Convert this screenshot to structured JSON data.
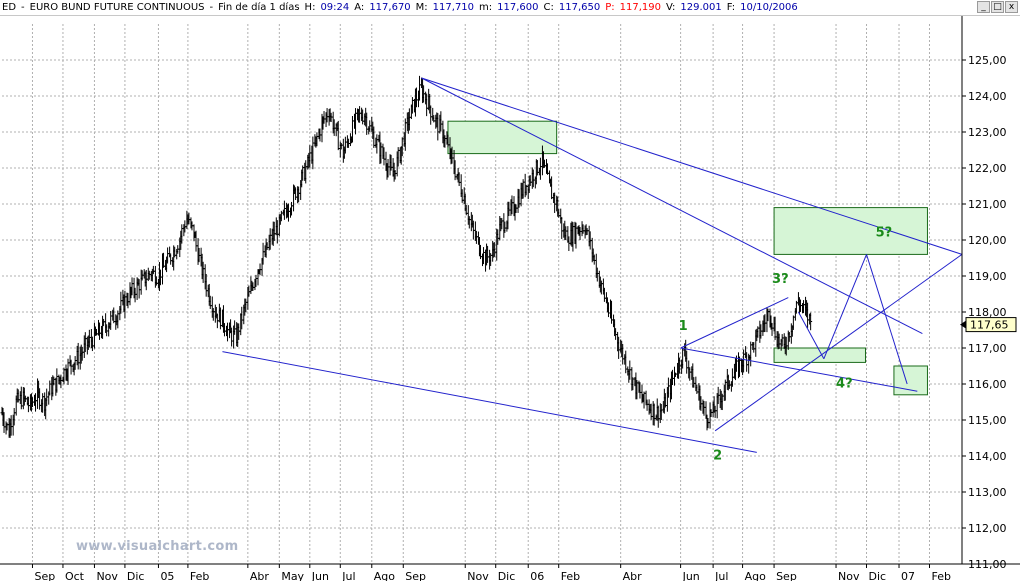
{
  "title_bar": {
    "symbol": "ED",
    "separator": "-",
    "name": "EURO BUND FUTURE CONTINUOUS",
    "dash": "-",
    "period": "Fin de día 1 días",
    "h_label": "H:",
    "h_value": "09:24",
    "a_label": "A:",
    "a_value": "117,670",
    "m_label": "M:",
    "m_value": "117,710",
    "mi_label": "m:",
    "mi_value": "117,600",
    "c_label": "C:",
    "c_value": "117,650",
    "p_label": "P:",
    "p_value": "117,190",
    "v_label": "V:",
    "v_value": "129.001",
    "f_label": "F:",
    "f_value": "10/10/2006",
    "buttons": {
      "minimize": "_",
      "restore": "□",
      "close": "x"
    }
  },
  "watermark": "www.visualchart.com",
  "colors": {
    "bars": "#000000",
    "trendlines": "#2222cc",
    "wave_labels": "#1a8a1a",
    "target_box_fill": "#d6f5d6",
    "target_box_border": "#1a6a1a",
    "grid": "#b0b0b0",
    "last_price_bg": "#ffffcc",
    "watermark": "#aeb7c9"
  },
  "chart_data": {
    "type": "line",
    "style": "ohlc-bars",
    "x_axis_type": "date",
    "xlim": [
      "2004-08-02",
      "2007-03-05"
    ],
    "ylim": [
      111.0,
      126.0
    ],
    "grid": true,
    "y_ticks": [
      "125,00",
      "124,00",
      "123,00",
      "122,00",
      "121,00",
      "120,00",
      "119,00",
      "118,00",
      "117,00",
      "116,00",
      "115,00",
      "114,00",
      "113,00",
      "112,00",
      "111,00"
    ],
    "y_tick_values": [
      125,
      124,
      123,
      122,
      121,
      120,
      119,
      118,
      117,
      116,
      115,
      114,
      113,
      112,
      111
    ],
    "x_ticks": [
      {
        "label": "Sep",
        "date": "2004-09-01"
      },
      {
        "label": "Oct",
        "date": "2004-10-01"
      },
      {
        "label": "Nov",
        "date": "2004-11-01"
      },
      {
        "label": "Dic",
        "date": "2004-12-01"
      },
      {
        "label": "05",
        "date": "2005-01-03"
      },
      {
        "label": "Feb",
        "date": "2005-02-01"
      },
      {
        "label": "Abr",
        "date": "2005-04-01"
      },
      {
        "label": "May",
        "date": "2005-05-02"
      },
      {
        "label": "Jun",
        "date": "2005-06-01"
      },
      {
        "label": "Jul",
        "date": "2005-07-01"
      },
      {
        "label": "Ago",
        "date": "2005-08-01"
      },
      {
        "label": "Sep",
        "date": "2005-09-01"
      },
      {
        "label": "Nov",
        "date": "2005-11-01"
      },
      {
        "label": "Dic",
        "date": "2005-12-01"
      },
      {
        "label": "06",
        "date": "2006-01-02"
      },
      {
        "label": "Feb",
        "date": "2006-02-01"
      },
      {
        "label": "Abr",
        "date": "2006-04-03"
      },
      {
        "label": "Jun",
        "date": "2006-06-01"
      },
      {
        "label": "Jul",
        "date": "2006-07-03"
      },
      {
        "label": "Ago",
        "date": "2006-08-01"
      },
      {
        "label": "Sep",
        "date": "2006-09-01"
      },
      {
        "label": "Nov",
        "date": "2006-11-01"
      },
      {
        "label": "Dic",
        "date": "2006-12-01"
      },
      {
        "label": "07",
        "date": "2007-01-02"
      },
      {
        "label": "Feb",
        "date": "2007-02-01"
      }
    ],
    "last_price_label": "117,65",
    "last_price": 117.65,
    "price_path": [
      [
        "2004-08-02",
        115.2
      ],
      [
        "2004-08-09",
        114.7
      ],
      [
        "2004-08-16",
        115.5
      ],
      [
        "2004-08-23",
        115.6
      ],
      [
        "2004-08-30",
        115.4
      ],
      [
        "2004-09-06",
        115.7
      ],
      [
        "2004-09-13",
        115.5
      ],
      [
        "2004-09-20",
        115.9
      ],
      [
        "2004-09-27",
        116.1
      ],
      [
        "2004-10-04",
        116.4
      ],
      [
        "2004-10-11",
        116.6
      ],
      [
        "2004-10-18",
        116.8
      ],
      [
        "2004-10-25",
        117.1
      ],
      [
        "2004-11-01",
        117.3
      ],
      [
        "2004-11-08",
        117.5
      ],
      [
        "2004-11-15",
        117.7
      ],
      [
        "2004-11-22",
        117.9
      ],
      [
        "2004-11-29",
        118.2
      ],
      [
        "2004-12-06",
        118.5
      ],
      [
        "2004-12-13",
        118.7
      ],
      [
        "2004-12-20",
        118.9
      ],
      [
        "2004-12-27",
        119.1
      ],
      [
        "2005-01-03",
        119.0
      ],
      [
        "2005-01-10",
        119.3
      ],
      [
        "2005-01-17",
        119.6
      ],
      [
        "2005-01-24",
        120.0
      ],
      [
        "2005-01-31",
        120.6
      ],
      [
        "2005-02-07",
        120.2
      ],
      [
        "2005-02-14",
        119.3
      ],
      [
        "2005-02-21",
        118.6
      ],
      [
        "2005-02-28",
        118.0
      ],
      [
        "2005-03-07",
        117.8
      ],
      [
        "2005-03-14",
        117.4
      ],
      [
        "2005-03-21",
        117.3
      ],
      [
        "2005-03-28",
        118.0
      ],
      [
        "2005-04-04",
        118.6
      ],
      [
        "2005-04-11",
        119.2
      ],
      [
        "2005-04-18",
        119.6
      ],
      [
        "2005-04-25",
        120.1
      ],
      [
        "2005-05-02",
        120.4
      ],
      [
        "2005-05-09",
        120.8
      ],
      [
        "2005-05-16",
        121.2
      ],
      [
        "2005-05-23",
        121.6
      ],
      [
        "2005-05-30",
        122.1
      ],
      [
        "2005-06-06",
        122.6
      ],
      [
        "2005-06-13",
        123.2
      ],
      [
        "2005-06-20",
        123.6
      ],
      [
        "2005-06-27",
        123.0
      ],
      [
        "2005-07-04",
        122.4
      ],
      [
        "2005-07-11",
        122.9
      ],
      [
        "2005-07-18",
        123.4
      ],
      [
        "2005-07-25",
        123.5
      ],
      [
        "2005-08-01",
        123.0
      ],
      [
        "2005-08-08",
        122.6
      ],
      [
        "2005-08-15",
        122.2
      ],
      [
        "2005-08-22",
        121.8
      ],
      [
        "2005-08-29",
        122.4
      ],
      [
        "2005-09-05",
        123.2
      ],
      [
        "2005-09-12",
        123.8
      ],
      [
        "2005-09-19",
        124.2
      ],
      [
        "2005-09-26",
        123.8
      ],
      [
        "2005-10-03",
        123.3
      ],
      [
        "2005-10-10",
        123.0
      ],
      [
        "2005-10-17",
        122.4
      ],
      [
        "2005-10-24",
        121.8
      ],
      [
        "2005-10-31",
        121.2
      ],
      [
        "2005-11-07",
        120.4
      ],
      [
        "2005-11-14",
        119.9
      ],
      [
        "2005-11-21",
        119.5
      ],
      [
        "2005-11-28",
        119.6
      ],
      [
        "2005-12-05",
        120.3
      ],
      [
        "2005-12-12",
        120.6
      ],
      [
        "2005-12-19",
        120.9
      ],
      [
        "2005-12-26",
        121.3
      ],
      [
        "2006-01-02",
        121.6
      ],
      [
        "2006-01-09",
        121.9
      ],
      [
        "2006-01-16",
        122.2
      ],
      [
        "2006-01-23",
        121.5
      ],
      [
        "2006-01-30",
        121.0
      ],
      [
        "2006-02-06",
        120.2
      ],
      [
        "2006-02-13",
        120.1
      ],
      [
        "2006-02-20",
        120.3
      ],
      [
        "2006-02-27",
        120.4
      ],
      [
        "2006-03-06",
        119.7
      ],
      [
        "2006-03-13",
        118.9
      ],
      [
        "2006-03-20",
        118.3
      ],
      [
        "2006-03-27",
        117.6
      ],
      [
        "2006-04-03",
        117.0
      ],
      [
        "2006-04-10",
        116.5
      ],
      [
        "2006-04-17",
        116.0
      ],
      [
        "2006-04-24",
        115.6
      ],
      [
        "2006-05-01",
        115.4
      ],
      [
        "2006-05-08",
        115.2
      ],
      [
        "2006-05-15",
        115.3
      ],
      [
        "2006-05-22",
        115.9
      ],
      [
        "2006-05-29",
        116.5
      ],
      [
        "2006-06-05",
        116.9
      ],
      [
        "2006-06-12",
        116.2
      ],
      [
        "2006-06-19",
        115.7
      ],
      [
        "2006-06-26",
        115.1
      ],
      [
        "2006-07-03",
        115.2
      ],
      [
        "2006-07-10",
        115.6
      ],
      [
        "2006-07-17",
        116.0
      ],
      [
        "2006-07-24",
        116.3
      ],
      [
        "2006-07-31",
        116.6
      ],
      [
        "2006-08-07",
        116.8
      ],
      [
        "2006-08-14",
        117.2
      ],
      [
        "2006-08-21",
        117.6
      ],
      [
        "2006-08-28",
        118.0
      ],
      [
        "2006-09-04",
        117.3
      ],
      [
        "2006-09-11",
        117.0
      ],
      [
        "2006-09-18",
        117.6
      ],
      [
        "2006-09-25",
        118.3
      ],
      [
        "2006-10-02",
        118.0
      ],
      [
        "2006-10-09",
        117.65
      ]
    ],
    "trend_lines": [
      [
        [
          "2005-09-19",
          124.5
        ],
        [
          "2007-01-25",
          117.4
        ]
      ],
      [
        [
          "2005-09-19",
          124.5
        ],
        [
          "2007-03-05",
          119.6
        ]
      ],
      [
        [
          "2005-03-07",
          116.9
        ],
        [
          "2006-08-15",
          114.1
        ]
      ],
      [
        [
          "2006-06-01",
          117.0
        ],
        [
          "2006-09-15",
          118.4
        ]
      ],
      [
        [
          "2006-06-01",
          117.0
        ],
        [
          "2007-01-20",
          115.8
        ]
      ],
      [
        [
          "2006-07-05",
          114.7
        ],
        [
          "2007-03-05",
          119.6
        ]
      ],
      [
        [
          "2006-09-25",
          118.0
        ],
        [
          "2006-10-20",
          116.7
        ]
      ],
      [
        [
          "2006-10-20",
          116.7
        ],
        [
          "2006-12-01",
          119.6
        ]
      ],
      [
        [
          "2006-12-01",
          119.6
        ],
        [
          "2007-01-10",
          116.0
        ]
      ]
    ],
    "target_boxes": [
      {
        "x0": "2005-10-15",
        "x1": "2006-01-30",
        "y0": 122.4,
        "y1": 123.3
      },
      {
        "x0": "2006-09-01",
        "x1": "2007-01-30",
        "y0": 119.6,
        "y1": 120.9
      },
      {
        "x0": "2006-09-01",
        "x1": "2006-11-30",
        "y0": 116.6,
        "y1": 117.0
      },
      {
        "x0": "2006-12-28",
        "x1": "2007-01-30",
        "y0": 115.7,
        "y1": 116.5
      }
    ],
    "annotations": [
      {
        "text": "1",
        "x": "2006-05-30",
        "y": 117.5
      },
      {
        "text": "2",
        "x": "2006-07-03",
        "y": 113.9
      },
      {
        "text": "3?",
        "x": "2006-08-30",
        "y": 118.8
      },
      {
        "text": "4?",
        "x": "2006-11-01",
        "y": 115.9
      },
      {
        "text": "5?",
        "x": "2006-12-10",
        "y": 120.1
      }
    ]
  }
}
